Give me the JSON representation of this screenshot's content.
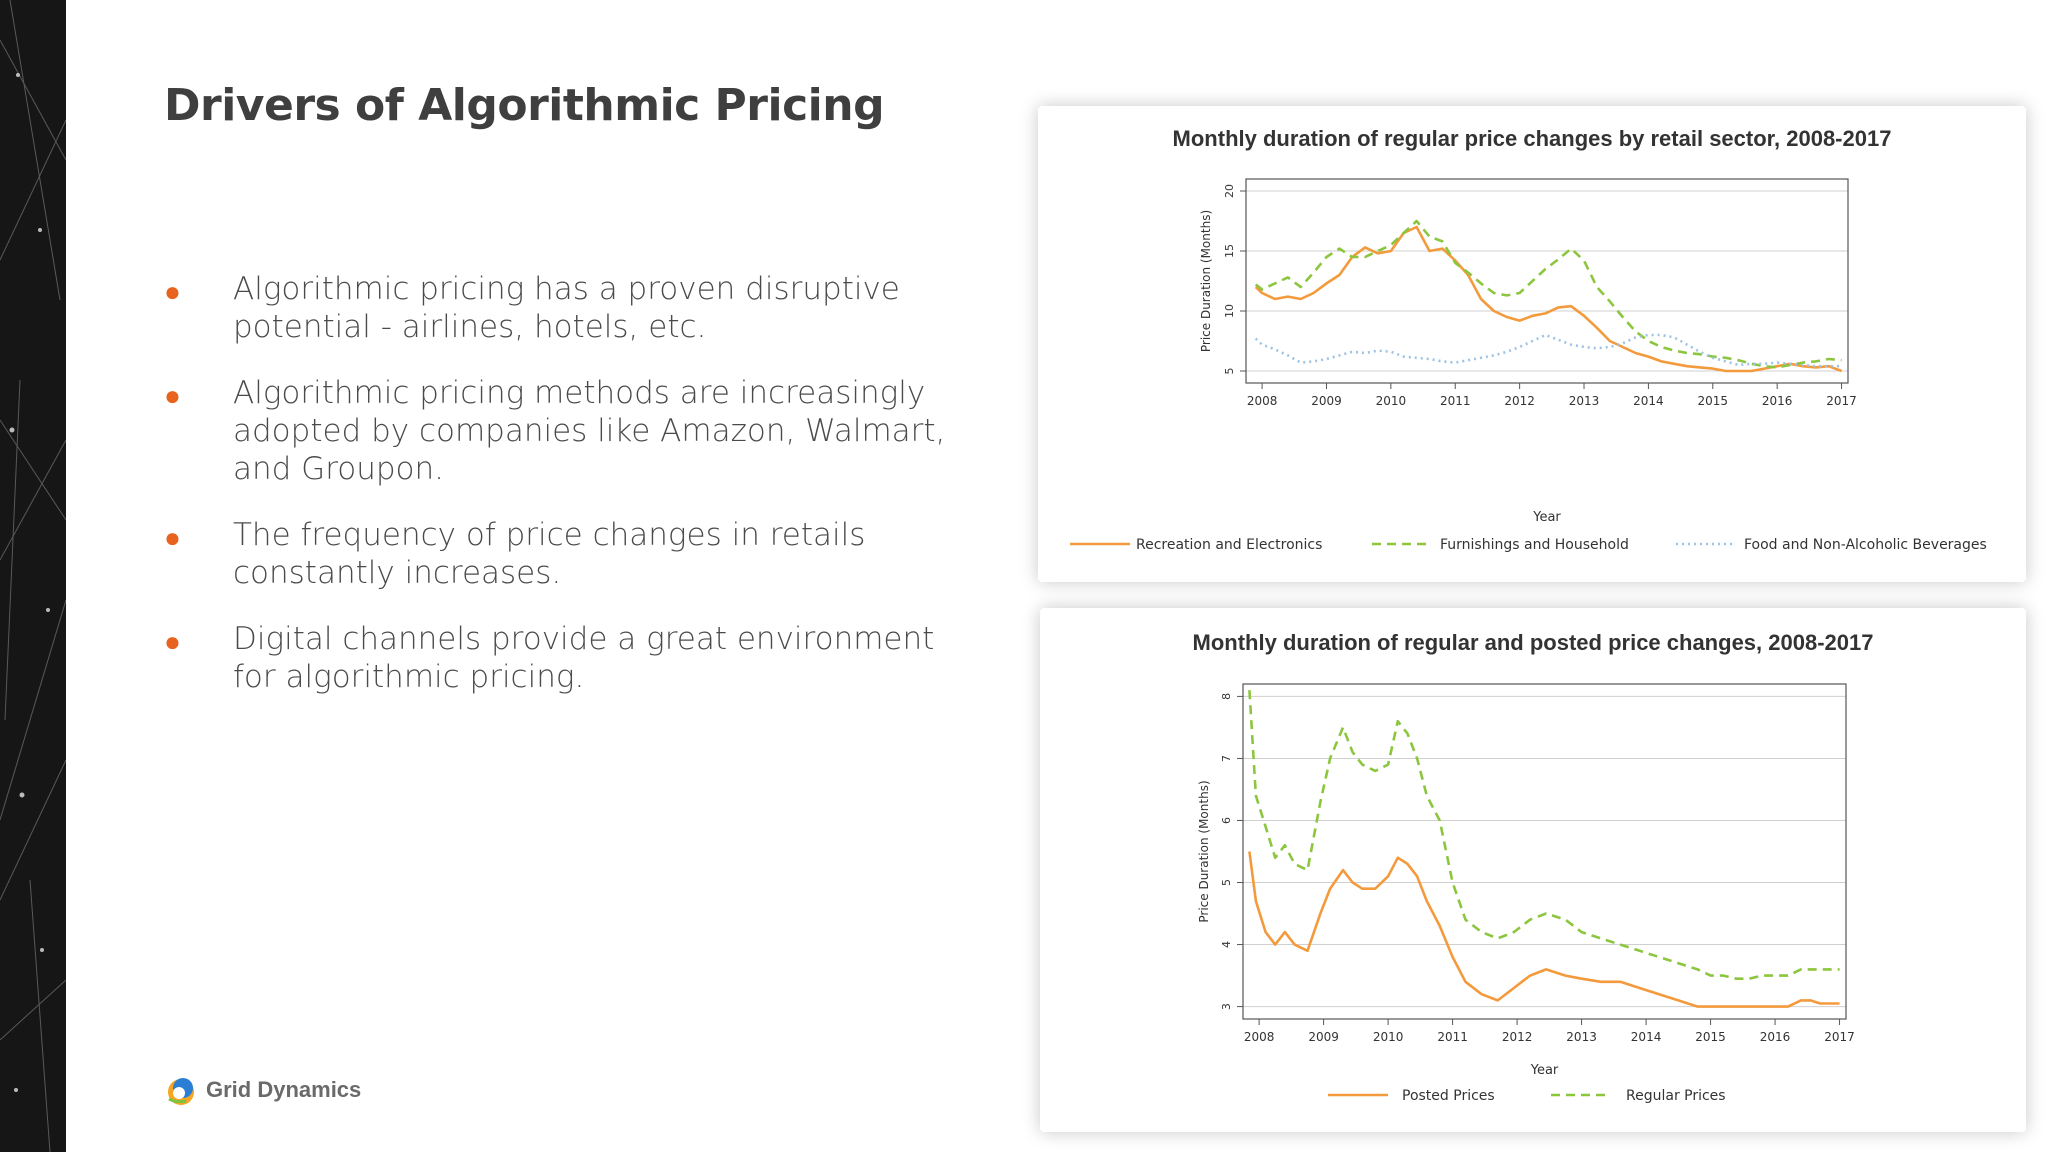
{
  "slide": {
    "title": "Drivers of Algorithmic Pricing",
    "bullets": [
      "Algorithmic  pricing has a proven disruptive potential - airlines, hotels, etc.",
      "Algorithmic  pricing methods are increasingly adopted by companies like Amazon, Walmart, and Groupon.",
      "The frequency of price changes in retails constantly increases.",
      "Digital channels provide a great environment for algorithmic pricing."
    ],
    "bullet_glyph": "●",
    "logo_text": "Grid Dynamics",
    "logo_icon": "grid-dynamics-logo-icon"
  },
  "colors": {
    "accent": "#e8641e",
    "orange_series": "#f39a3d",
    "green_series": "#8cc63f",
    "blue_series": "#9cc3e6",
    "text": "#4a4a4a",
    "left_strip": "#161616"
  },
  "chart_data": [
    {
      "type": "line",
      "title": "Monthly duration of regular price changes by retail sector, 2008-2017",
      "xlabel": "Year",
      "ylabel": "Price Duration (Months)",
      "xlim": [
        2007.75,
        2017.1
      ],
      "ylim": [
        4,
        21
      ],
      "yticks": [
        5,
        10,
        15,
        20
      ],
      "xticks": [
        2008,
        2009,
        2010,
        2011,
        2012,
        2013,
        2014,
        2015,
        2016,
        2017
      ],
      "grid": "horizontal",
      "legend_position": "bottom",
      "series": [
        {
          "name": "Recreation and Electronics",
          "style": "solid",
          "color": "#f39a3d",
          "x": [
            2007.9,
            2008.0,
            2008.2,
            2008.4,
            2008.6,
            2008.8,
            2009.0,
            2009.2,
            2009.4,
            2009.6,
            2009.8,
            2010.0,
            2010.2,
            2010.4,
            2010.6,
            2010.8,
            2011.0,
            2011.2,
            2011.4,
            2011.6,
            2011.8,
            2012.0,
            2012.2,
            2012.4,
            2012.6,
            2012.8,
            2013.0,
            2013.2,
            2013.4,
            2013.6,
            2013.8,
            2014.0,
            2014.2,
            2014.4,
            2014.6,
            2014.8,
            2015.0,
            2015.2,
            2015.4,
            2015.6,
            2015.8,
            2016.0,
            2016.2,
            2016.4,
            2016.6,
            2016.8,
            2017.0
          ],
          "y": [
            12.0,
            11.5,
            11.0,
            11.2,
            11.0,
            11.5,
            12.3,
            13.0,
            14.5,
            15.3,
            14.8,
            15.0,
            16.5,
            17.0,
            15.0,
            15.2,
            14.2,
            13.0,
            11.0,
            10.0,
            9.5,
            9.2,
            9.6,
            9.8,
            10.3,
            10.4,
            9.6,
            8.6,
            7.5,
            7.0,
            6.5,
            6.2,
            5.8,
            5.6,
            5.4,
            5.3,
            5.2,
            5.0,
            5.0,
            5.0,
            5.2,
            5.4,
            5.6,
            5.4,
            5.3,
            5.4,
            5.0
          ]
        },
        {
          "name": "Furnishings and Household",
          "style": "dashed",
          "color": "#8cc63f",
          "x": [
            2007.9,
            2008.0,
            2008.2,
            2008.4,
            2008.6,
            2008.8,
            2009.0,
            2009.2,
            2009.4,
            2009.6,
            2009.8,
            2010.0,
            2010.2,
            2010.4,
            2010.6,
            2010.8,
            2011.0,
            2011.2,
            2011.4,
            2011.6,
            2011.8,
            2012.0,
            2012.2,
            2012.4,
            2012.6,
            2012.8,
            2013.0,
            2013.2,
            2013.4,
            2013.6,
            2013.8,
            2014.0,
            2014.2,
            2014.4,
            2014.6,
            2014.8,
            2015.0,
            2015.2,
            2015.4,
            2015.6,
            2015.8,
            2016.0,
            2016.2,
            2016.4,
            2016.6,
            2016.8,
            2017.0
          ],
          "y": [
            12.2,
            11.8,
            12.3,
            12.8,
            12.0,
            13.2,
            14.5,
            15.2,
            14.5,
            14.5,
            15.0,
            15.5,
            16.5,
            17.5,
            16.2,
            15.8,
            14.0,
            13.2,
            12.3,
            11.5,
            11.3,
            11.5,
            12.5,
            13.5,
            14.3,
            15.2,
            14.2,
            12.0,
            10.8,
            9.5,
            8.3,
            7.5,
            7.0,
            6.7,
            6.5,
            6.4,
            6.2,
            6.1,
            5.9,
            5.6,
            5.4,
            5.3,
            5.5,
            5.7,
            5.8,
            6.0,
            5.9
          ]
        },
        {
          "name": "Food and Non-Alcoholic Beverages",
          "style": "dotted",
          "color": "#9cc3e6",
          "x": [
            2007.9,
            2008.0,
            2008.2,
            2008.4,
            2008.6,
            2008.8,
            2009.0,
            2009.2,
            2009.4,
            2009.6,
            2009.8,
            2010.0,
            2010.2,
            2010.4,
            2010.6,
            2010.8,
            2011.0,
            2011.2,
            2011.4,
            2011.6,
            2011.8,
            2012.0,
            2012.2,
            2012.4,
            2012.6,
            2012.8,
            2013.0,
            2013.2,
            2013.4,
            2013.6,
            2013.8,
            2014.0,
            2014.2,
            2014.4,
            2014.6,
            2014.8,
            2015.0,
            2015.2,
            2015.4,
            2015.6,
            2015.8,
            2016.0,
            2016.2,
            2016.4,
            2016.6,
            2016.8,
            2017.0
          ],
          "y": [
            7.7,
            7.2,
            6.8,
            6.3,
            5.7,
            5.8,
            6.0,
            6.3,
            6.6,
            6.5,
            6.7,
            6.6,
            6.2,
            6.1,
            6.0,
            5.8,
            5.7,
            5.9,
            6.1,
            6.3,
            6.6,
            7.0,
            7.5,
            8.0,
            7.6,
            7.2,
            7.0,
            6.9,
            7.0,
            7.3,
            7.8,
            8.0,
            8.0,
            7.8,
            7.2,
            6.6,
            6.1,
            5.8,
            5.5,
            5.6,
            5.6,
            5.7,
            5.6,
            5.5,
            5.4,
            5.4,
            5.4
          ]
        }
      ]
    },
    {
      "type": "line",
      "title": "Monthly duration of regular and posted price changes, 2008-2017",
      "xlabel": "Year",
      "ylabel": "Price Duration (Months)",
      "xlim": [
        2007.75,
        2017.1
      ],
      "ylim": [
        2.8,
        8.2
      ],
      "yticks": [
        3,
        4,
        5,
        6,
        7,
        8
      ],
      "xticks": [
        2008,
        2009,
        2010,
        2011,
        2012,
        2013,
        2014,
        2015,
        2016,
        2017
      ],
      "grid": "horizontal",
      "legend_position": "bottom",
      "series": [
        {
          "name": "Posted Prices",
          "style": "solid",
          "color": "#f39a3d",
          "x": [
            2007.85,
            2007.95,
            2008.1,
            2008.25,
            2008.4,
            2008.55,
            2008.75,
            2008.95,
            2009.1,
            2009.3,
            2009.45,
            2009.6,
            2009.8,
            2010.0,
            2010.15,
            2010.3,
            2010.45,
            2010.6,
            2010.8,
            2011.0,
            2011.2,
            2011.45,
            2011.7,
            2011.95,
            2012.2,
            2012.45,
            2012.75,
            2013.0,
            2013.3,
            2013.6,
            2013.9,
            2014.2,
            2014.5,
            2014.8,
            2015.0,
            2015.2,
            2015.4,
            2015.6,
            2015.8,
            2016.0,
            2016.2,
            2016.4,
            2016.55,
            2016.7,
            2016.9,
            2017.0
          ],
          "y": [
            5.5,
            4.7,
            4.2,
            4.0,
            4.2,
            4.0,
            3.9,
            4.5,
            4.9,
            5.2,
            5.0,
            4.9,
            4.9,
            5.1,
            5.4,
            5.3,
            5.1,
            4.7,
            4.3,
            3.8,
            3.4,
            3.2,
            3.1,
            3.3,
            3.5,
            3.6,
            3.5,
            3.45,
            3.4,
            3.4,
            3.3,
            3.2,
            3.1,
            3.0,
            3.0,
            3.0,
            3.0,
            3.0,
            3.0,
            3.0,
            3.0,
            3.1,
            3.1,
            3.05,
            3.05,
            3.05
          ]
        },
        {
          "name": "Regular Prices",
          "style": "dashed",
          "color": "#8cc63f",
          "x": [
            2007.85,
            2007.95,
            2008.1,
            2008.25,
            2008.4,
            2008.55,
            2008.75,
            2008.95,
            2009.1,
            2009.3,
            2009.45,
            2009.6,
            2009.8,
            2010.0,
            2010.15,
            2010.3,
            2010.45,
            2010.6,
            2010.8,
            2011.0,
            2011.2,
            2011.45,
            2011.7,
            2011.95,
            2012.2,
            2012.45,
            2012.75,
            2013.0,
            2013.3,
            2013.6,
            2013.9,
            2014.2,
            2014.5,
            2014.8,
            2015.0,
            2015.2,
            2015.4,
            2015.6,
            2015.8,
            2016.0,
            2016.2,
            2016.4,
            2016.55,
            2016.7,
            2016.9,
            2017.0
          ],
          "y": [
            8.1,
            6.4,
            5.9,
            5.4,
            5.6,
            5.3,
            5.2,
            6.3,
            7.0,
            7.5,
            7.1,
            6.9,
            6.8,
            6.9,
            7.6,
            7.4,
            7.0,
            6.4,
            6.0,
            5.0,
            4.4,
            4.2,
            4.1,
            4.2,
            4.4,
            4.5,
            4.4,
            4.2,
            4.1,
            4.0,
            3.9,
            3.8,
            3.7,
            3.6,
            3.5,
            3.5,
            3.45,
            3.45,
            3.5,
            3.5,
            3.5,
            3.6,
            3.6,
            3.6,
            3.6,
            3.6
          ]
        }
      ]
    }
  ]
}
